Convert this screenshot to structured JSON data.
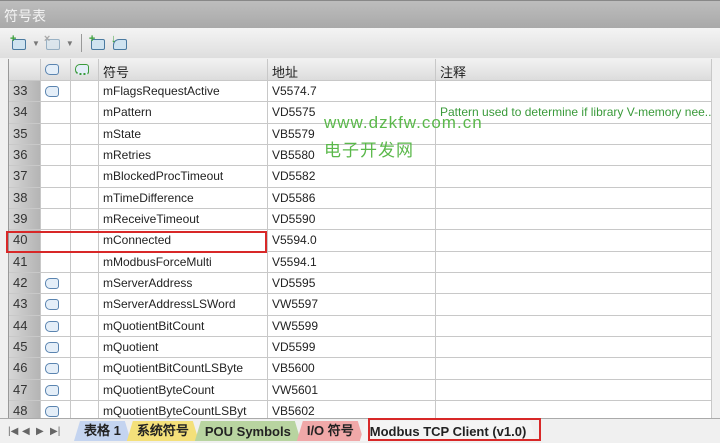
{
  "window": {
    "title": "符号表"
  },
  "toolbar": {
    "buttons": [
      {
        "icon": "add-symbol-icon"
      },
      {
        "icon": "delete-symbol-icon"
      },
      {
        "icon": "create-table-icon"
      },
      {
        "icon": "update-icon"
      }
    ]
  },
  "table": {
    "columns": [
      "",
      "",
      "",
      "符号",
      "地址",
      "注释"
    ],
    "rows": [
      {
        "num": "33",
        "icon": true,
        "symbol": "mFlagsRequestActive",
        "address": "V5574.7",
        "comment": ""
      },
      {
        "num": "34",
        "icon": false,
        "symbol": "mPattern",
        "address": "VD5575",
        "comment": "Pattern used to determine if library V-memory nee..."
      },
      {
        "num": "35",
        "icon": false,
        "symbol": "mState",
        "address": "VB5579",
        "comment": ""
      },
      {
        "num": "36",
        "icon": false,
        "symbol": "mRetries",
        "address": "VB5580",
        "comment": ""
      },
      {
        "num": "37",
        "icon": false,
        "symbol": "mBlockedProcTimeout",
        "address": "VD5582",
        "comment": ""
      },
      {
        "num": "38",
        "icon": false,
        "symbol": "mTimeDifference",
        "address": "VD5586",
        "comment": ""
      },
      {
        "num": "39",
        "icon": false,
        "symbol": "mReceiveTimeout",
        "address": "VD5590",
        "comment": ""
      },
      {
        "num": "40",
        "icon": false,
        "symbol": "mConnected",
        "address": "V5594.0",
        "comment": "",
        "highlighted": true
      },
      {
        "num": "41",
        "icon": false,
        "symbol": "mModbusForceMulti",
        "address": "V5594.1",
        "comment": ""
      },
      {
        "num": "42",
        "icon": true,
        "symbol": "mServerAddress",
        "address": "VD5595",
        "comment": ""
      },
      {
        "num": "43",
        "icon": true,
        "symbol": "mServerAddressLSWord",
        "address": "VW5597",
        "comment": ""
      },
      {
        "num": "44",
        "icon": true,
        "symbol": "mQuotientBitCount",
        "address": "VW5599",
        "comment": ""
      },
      {
        "num": "45",
        "icon": true,
        "symbol": "mQuotient",
        "address": "VD5599",
        "comment": ""
      },
      {
        "num": "46",
        "icon": true,
        "symbol": "mQuotientBitCountLSByte",
        "address": "VB5600",
        "comment": ""
      },
      {
        "num": "47",
        "icon": true,
        "symbol": "mQuotientByteCount",
        "address": "VW5601",
        "comment": ""
      },
      {
        "num": "48",
        "icon": true,
        "symbol": "mQuotientByteCountLSByt",
        "address": "VB5602",
        "comment": ""
      }
    ]
  },
  "watermark": {
    "url": "www.dzkfw.com.cn",
    "name": "电子开发网"
  },
  "tabs": [
    {
      "label": "表格 1",
      "color": "#c4d4f0"
    },
    {
      "label": "系统符号",
      "color": "#f4e07a"
    },
    {
      "label": "POU Symbols",
      "color": "#b8d4a0"
    },
    {
      "label": "I/O 符号",
      "color": "#f0a8a8"
    },
    {
      "label": "Modbus TCP Client (v1.0)",
      "color": "#f4f4f4",
      "active": true
    }
  ],
  "colors": {
    "highlight": "#d82828",
    "comment": "#3a9a3a"
  }
}
